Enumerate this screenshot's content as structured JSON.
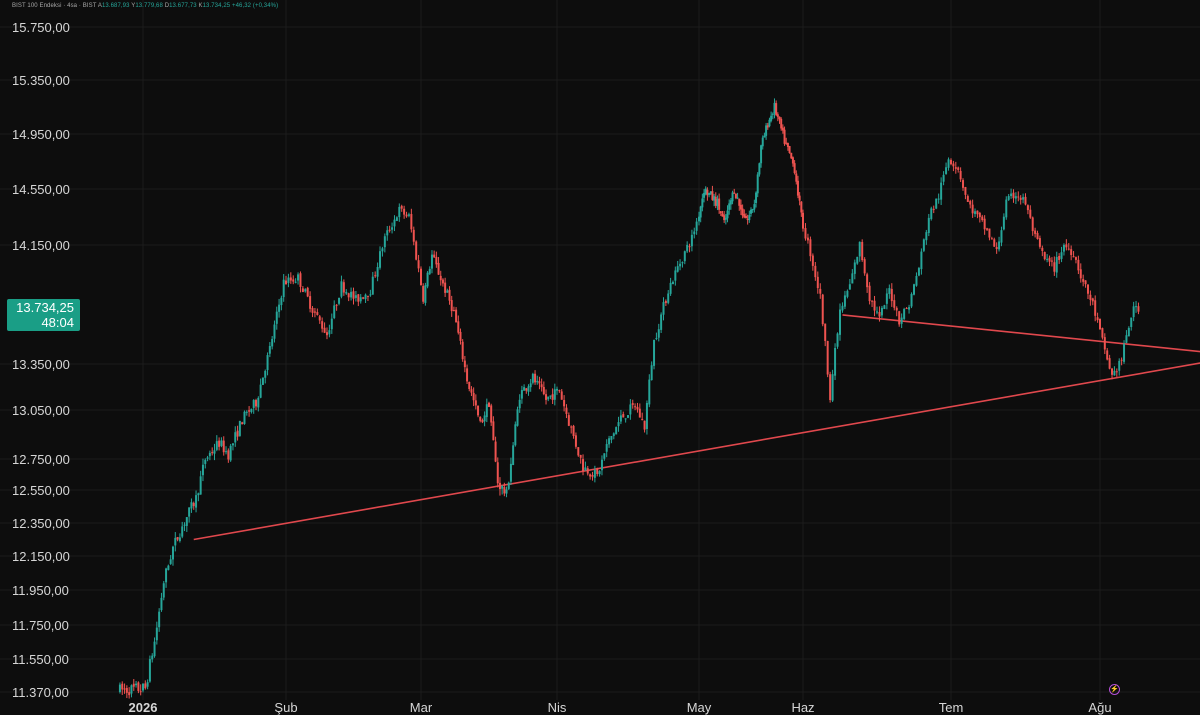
{
  "header": {
    "symbol": "BIST 100 Endeksi · 4sa · BIST",
    "open_label": "A",
    "open": "13.687,93",
    "high_label": "Y",
    "high": "13.779,68",
    "low_label": "D",
    "low": "13.677,73",
    "close_label": "K",
    "close": "13.734,25",
    "change": "+46,32 (+0,34%)"
  },
  "price_tag": {
    "price": "13.734,25",
    "countdown": "48:04"
  },
  "colors": {
    "up": "#26a69a",
    "down": "#ef5350",
    "trendline": "#e0484d",
    "background": "#0d0d0d",
    "grid": "#1c1c1c",
    "tag": "#1a9e86"
  },
  "icons": {
    "alert": "lightning-alert-icon"
  },
  "chart_data": {
    "type": "candlestick",
    "title": "BIST 100 Endeksi",
    "interval": "4sa",
    "exchange": "BIST",
    "y_ticks": [
      "15.750,00",
      "15.350,00",
      "14.950,00",
      "14.550,00",
      "14.150,00",
      "13.350,00",
      "13.050,00",
      "12.750,00",
      "12.550,00",
      "12.350,00",
      "12.150,00",
      "11.950,00",
      "11.750,00",
      "11.550,00",
      "11.370,00"
    ],
    "y_tick_values": [
      15750,
      15350,
      14950,
      14550,
      14150,
      13350,
      13050,
      12750,
      12550,
      12350,
      12150,
      11950,
      11750,
      11550,
      11370
    ],
    "x_labels": [
      "2026",
      "Şub",
      "Mar",
      "Nis",
      "May",
      "Haz",
      "Tem",
      "Ağu"
    ],
    "x_label_dates": [
      "2026-01-01",
      "2026-02-01",
      "2026-03-01",
      "2026-04-01",
      "2026-05-01",
      "2026-06-01",
      "2026-07-01",
      "2026-08-01"
    ],
    "grid": true,
    "last_price": 13734.25,
    "path_points": [
      [
        "2025-12-27",
        11380
      ],
      [
        "2026-01-02",
        11390
      ],
      [
        "2026-01-04",
        11650
      ],
      [
        "2026-01-06",
        12000
      ],
      [
        "2026-01-08",
        12200
      ],
      [
        "2026-01-10",
        12330
      ],
      [
        "2026-01-13",
        12500
      ],
      [
        "2026-01-15",
        12750
      ],
      [
        "2026-01-18",
        12850
      ],
      [
        "2026-01-20",
        12780
      ],
      [
        "2026-01-23",
        12990
      ],
      [
        "2026-01-26",
        13100
      ],
      [
        "2026-01-29",
        13450
      ],
      [
        "2026-02-01",
        13900
      ],
      [
        "2026-02-04",
        13930
      ],
      [
        "2026-02-07",
        13720
      ],
      [
        "2026-02-10",
        13550
      ],
      [
        "2026-02-13",
        13880
      ],
      [
        "2026-02-16",
        13780
      ],
      [
        "2026-02-19",
        13850
      ],
      [
        "2026-02-22",
        14200
      ],
      [
        "2026-02-25",
        14400
      ],
      [
        "2026-02-27",
        14350
      ],
      [
        "2026-03-02",
        13800
      ],
      [
        "2026-03-04",
        14080
      ],
      [
        "2026-03-07",
        13850
      ],
      [
        "2026-03-09",
        13700
      ],
      [
        "2026-03-12",
        13250
      ],
      [
        "2026-03-15",
        12960
      ],
      [
        "2026-03-17",
        13100
      ],
      [
        "2026-03-19",
        12600
      ],
      [
        "2026-03-21",
        12520
      ],
      [
        "2026-03-24",
        13150
      ],
      [
        "2026-03-27",
        13260
      ],
      [
        "2026-03-30",
        13120
      ],
      [
        "2026-04-02",
        13180
      ],
      [
        "2026-04-04",
        12980
      ],
      [
        "2026-04-07",
        12700
      ],
      [
        "2026-04-10",
        12640
      ],
      [
        "2026-04-12",
        12830
      ],
      [
        "2026-04-15",
        13000
      ],
      [
        "2026-04-18",
        13080
      ],
      [
        "2026-04-20",
        12950
      ],
      [
        "2026-04-22",
        13500
      ],
      [
        "2026-04-25",
        13850
      ],
      [
        "2026-04-27",
        14000
      ],
      [
        "2026-04-30",
        14200
      ],
      [
        "2026-05-03",
        14550
      ],
      [
        "2026-05-05",
        14500
      ],
      [
        "2026-05-07",
        14450
      ],
      [
        "2026-05-09",
        14300
      ],
      [
        "2026-05-12",
        14550
      ],
      [
        "2026-05-14",
        14400
      ],
      [
        "2026-05-16",
        14330
      ],
      [
        "2026-05-18",
        14450
      ],
      [
        "2026-05-20",
        14850
      ],
      [
        "2026-05-22",
        15030
      ],
      [
        "2026-05-24",
        15150
      ],
      [
        "2026-05-27",
        14900
      ],
      [
        "2026-05-30",
        14700
      ],
      [
        "2026-06-01",
        14350
      ],
      [
        "2026-06-03",
        14100
      ],
      [
        "2026-06-05",
        13800
      ],
      [
        "2026-06-07",
        13150
      ],
      [
        "2026-06-09",
        13700
      ],
      [
        "2026-06-11",
        13880
      ],
      [
        "2026-06-13",
        14150
      ],
      [
        "2026-06-15",
        13800
      ],
      [
        "2026-06-17",
        13650
      ],
      [
        "2026-06-19",
        13850
      ],
      [
        "2026-06-21",
        13650
      ],
      [
        "2026-06-23",
        13750
      ],
      [
        "2026-06-25",
        14000
      ],
      [
        "2026-06-27",
        14350
      ],
      [
        "2026-06-29",
        14500
      ],
      [
        "2026-07-01",
        14780
      ],
      [
        "2026-07-03",
        14700
      ],
      [
        "2026-07-05",
        14450
      ],
      [
        "2026-07-07",
        14350
      ],
      [
        "2026-07-09",
        14250
      ],
      [
        "2026-07-11",
        14100
      ],
      [
        "2026-07-13",
        14450
      ],
      [
        "2026-07-15",
        14520
      ],
      [
        "2026-07-17",
        14450
      ],
      [
        "2026-07-19",
        14200
      ],
      [
        "2026-07-21",
        14050
      ],
      [
        "2026-07-23",
        14000
      ],
      [
        "2026-07-25",
        14150
      ],
      [
        "2026-07-27",
        14100
      ],
      [
        "2026-07-29",
        13900
      ],
      [
        "2026-07-31",
        13750
      ],
      [
        "2026-08-02",
        13500
      ],
      [
        "2026-08-04",
        13270
      ],
      [
        "2026-08-06",
        13380
      ],
      [
        "2026-08-08",
        13680
      ],
      [
        "2026-08-09",
        13734.25
      ]
    ],
    "trendlines": [
      {
        "name": "support",
        "from": [
          "2026-01-12",
          12250
        ],
        "to": [
          "2026-08-26",
          13380
        ]
      },
      {
        "name": "neckline",
        "from": [
          "2026-06-09",
          13680
        ],
        "to": [
          "2026-08-26",
          13420
        ]
      }
    ]
  }
}
